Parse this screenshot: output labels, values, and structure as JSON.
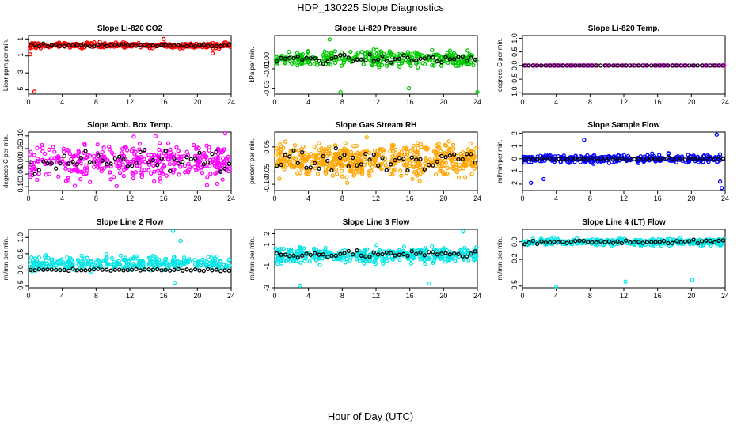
{
  "figure": {
    "title": "HDP_130225  Slope Diagnostics",
    "xlabel": "Hour of Day (UTC)"
  },
  "chart_data": [
    {
      "type": "scatter",
      "title": "Slope Li-820 CO2",
      "ylabel": "Licor ppm per min.",
      "color": "#ff0000",
      "xlim": [
        0,
        24
      ],
      "xticks": [
        0,
        4,
        8,
        12,
        16,
        20,
        24
      ],
      "ylim": [
        -5.5,
        1.4
      ],
      "yticks": [
        1,
        -1,
        -3,
        -5
      ],
      "ytick_labels": [
        "1",
        "-1",
        "-3",
        "-5"
      ],
      "series": [
        {
          "name": "samples",
          "color": "#ff0000",
          "center": 0.25,
          "spread": 0.3,
          "n": 320,
          "outliers": [
            {
              "x": 0.7,
              "y": -5.2
            },
            {
              "x": 0.2,
              "y": -0.8
            },
            {
              "x": 16.0,
              "y": 1.0
            },
            {
              "x": 21.8,
              "y": -0.7
            }
          ]
        },
        {
          "name": "hourly",
          "color": "#000000",
          "center": 0.25,
          "spread": 0.15,
          "n": 48
        }
      ]
    },
    {
      "type": "scatter",
      "title": "Slope Li-820 Pressure",
      "ylabel": "kPa per min.",
      "color": "#00c800",
      "xlim": [
        0,
        24
      ],
      "xticks": [
        0,
        4,
        8,
        12,
        16,
        20,
        24
      ],
      "ylim": [
        -0.036,
        0.024
      ],
      "yticks": [
        0.0,
        -0.01,
        -0.03
      ],
      "ytick_labels": [
        "0.00",
        "-0.01",
        "-0.03"
      ],
      "series": [
        {
          "name": "samples",
          "color": "#00c800",
          "center": 0.0,
          "spread": 0.008,
          "n": 320,
          "outliers": [
            {
              "x": 7.8,
              "y": -0.034
            },
            {
              "x": 15.9,
              "y": -0.03
            },
            {
              "x": 24.0,
              "y": -0.034
            },
            {
              "x": 6.5,
              "y": 0.02
            }
          ]
        },
        {
          "name": "hourly",
          "color": "#000000",
          "center": 0.0,
          "spread": 0.004,
          "n": 48
        }
      ]
    },
    {
      "type": "scatter",
      "title": "Slope Li-820 Temp.",
      "ylabel": "degrees C per min.",
      "color": "#ff00ff",
      "xlim": [
        0,
        24
      ],
      "xticks": [
        0,
        4,
        8,
        12,
        16,
        20,
        24
      ],
      "ylim": [
        -1.05,
        1.1
      ],
      "yticks": [
        1.0,
        0.5,
        0.0,
        -0.5,
        -1.0
      ],
      "ytick_labels": [
        "1.0",
        "0.5",
        "0.0",
        "-0.5",
        "-1.0"
      ],
      "series": [
        {
          "name": "samples",
          "color": "#ff00ff",
          "center": 0.0,
          "spread": 0.0,
          "n": 120,
          "outliers": []
        },
        {
          "name": "hourly",
          "color": "#000000",
          "center": 0.0,
          "spread": 0.0,
          "n": 48
        }
      ]
    },
    {
      "type": "scatter",
      "title": "Slope Amb. Box Temp.",
      "ylabel": "degrees C per min.",
      "color": "#ff00ff",
      "xlim": [
        0,
        24
      ],
      "xticks": [
        0,
        4,
        8,
        12,
        16,
        20,
        24
      ],
      "ylim": [
        -0.115,
        0.115
      ],
      "yticks": [
        0.1,
        0.05,
        0.0,
        -0.05,
        -0.1
      ],
      "ytick_labels": [
        "0.10",
        "0.05",
        "0.00",
        "-0.05",
        "-0.10"
      ],
      "series": [
        {
          "name": "samples",
          "color": "#ff00ff",
          "center": 0.0,
          "spread": 0.075,
          "n": 380,
          "outliers": []
        },
        {
          "name": "hourly",
          "color": "#000000",
          "center": 0.0,
          "spread": 0.045,
          "n": 48
        }
      ]
    },
    {
      "type": "scatter",
      "title": "Slope Gas Stream RH",
      "ylabel": "percent per min.",
      "color": "#ffa500",
      "xlim": [
        0,
        24
      ],
      "xticks": [
        0,
        4,
        8,
        12,
        16,
        20,
        24
      ],
      "ylim": [
        -0.125,
        0.11
      ],
      "yticks": [
        0.05,
        -0.05,
        -0.1
      ],
      "ytick_labels": [
        "0.05",
        "-0.05",
        "-0.10"
      ],
      "series": [
        {
          "name": "samples",
          "color": "#ffa500",
          "center": 0.0,
          "spread": 0.065,
          "n": 520,
          "outliers": []
        },
        {
          "name": "hourly",
          "color": "#000000",
          "center": 0.0,
          "spread": 0.045,
          "n": 48
        }
      ]
    },
    {
      "type": "scatter",
      "title": "Slope Sample Flow",
      "ylabel": "ml/min per min.",
      "color": "#0000ff",
      "xlim": [
        0,
        24
      ],
      "xticks": [
        0,
        4,
        8,
        12,
        16,
        20,
        24
      ],
      "ylim": [
        -2.5,
        2.1
      ],
      "yticks": [
        2,
        1,
        0,
        -1,
        -2
      ],
      "ytick_labels": [
        "2",
        "1",
        "0",
        "-1",
        "-2"
      ],
      "series": [
        {
          "name": "samples",
          "color": "#0000ff",
          "center": 0.0,
          "spread": 0.3,
          "n": 320,
          "outliers": [
            {
              "x": 23.6,
              "y": -2.3
            },
            {
              "x": 23.4,
              "y": -1.8
            },
            {
              "x": 23.0,
              "y": 1.9
            },
            {
              "x": 1.0,
              "y": -1.9
            },
            {
              "x": 7.3,
              "y": 1.5
            },
            {
              "x": 2.5,
              "y": -1.6
            }
          ]
        },
        {
          "name": "hourly",
          "color": "#000000",
          "center": 0.0,
          "spread": 0.1,
          "n": 48
        }
      ]
    },
    {
      "type": "scatter",
      "title": "Slope Line 2 Flow",
      "ylabel": "ml/min per min.",
      "color": "#00e5e5",
      "xlim": [
        0,
        24
      ],
      "xticks": [
        0,
        4,
        8,
        12,
        16,
        20,
        24
      ],
      "ylim": [
        -0.55,
        1.25
      ],
      "yticks": [
        1.0,
        0.5,
        0.0,
        -0.5
      ],
      "ytick_labels": [
        "1.0",
        "0.5",
        "0.0",
        "-0.5"
      ],
      "series": [
        {
          "name": "samples",
          "color": "#00e5e5",
          "center": 0.2,
          "spread": 0.2,
          "n": 320,
          "outliers": [
            {
              "x": 17.1,
              "y": 1.2
            },
            {
              "x": 17.3,
              "y": -0.4
            },
            {
              "x": 18.0,
              "y": 0.9
            }
          ]
        },
        {
          "name": "hourly",
          "color": "#000000",
          "center": 0.0,
          "spread": 0.03,
          "n": 48
        }
      ]
    },
    {
      "type": "scatter",
      "title": "Slope Line 3 Flow",
      "ylabel": "ml/min per min.",
      "color": "#00e5e5",
      "xlim": [
        0,
        24
      ],
      "xticks": [
        0,
        4,
        8,
        12,
        16,
        20,
        24
      ],
      "ylim": [
        -3.0,
        2.4
      ],
      "yticks": [
        2,
        1,
        -1,
        -3
      ],
      "ytick_labels": [
        "2",
        "1",
        "-1",
        "-3"
      ],
      "series": [
        {
          "name": "samples",
          "color": "#00e5e5",
          "center": 0.0,
          "spread": 0.7,
          "n": 360,
          "outliers": [
            {
              "x": 22.3,
              "y": 2.2
            },
            {
              "x": 3.0,
              "y": -2.8
            },
            {
              "x": 18.3,
              "y": -2.6
            }
          ]
        },
        {
          "name": "hourly",
          "color": "#000000",
          "center": 0.1,
          "spread": 0.3,
          "n": 48
        }
      ]
    },
    {
      "type": "scatter",
      "title": "Slope Line 4 (LT) Flow",
      "ylabel": "ml/min per min.",
      "color": "#00e5e5",
      "xlim": [
        0,
        24
      ],
      "xticks": [
        0,
        4,
        8,
        12,
        16,
        20,
        24
      ],
      "ylim": [
        -0.52,
        0.14
      ],
      "yticks": [
        0.0,
        -0.2,
        -0.5
      ],
      "ytick_labels": [
        "0.0",
        "-0.2",
        "-0.5"
      ],
      "series": [
        {
          "name": "samples",
          "color": "#00e5e5",
          "center": 0.0,
          "spread": 0.04,
          "n": 320,
          "outliers": [
            {
              "x": 4.0,
              "y": -0.51
            },
            {
              "x": 12.2,
              "y": -0.45
            },
            {
              "x": 20.1,
              "y": -0.43
            }
          ]
        },
        {
          "name": "hourly",
          "color": "#000000",
          "center": 0.0,
          "spread": 0.02,
          "n": 48
        }
      ]
    }
  ]
}
